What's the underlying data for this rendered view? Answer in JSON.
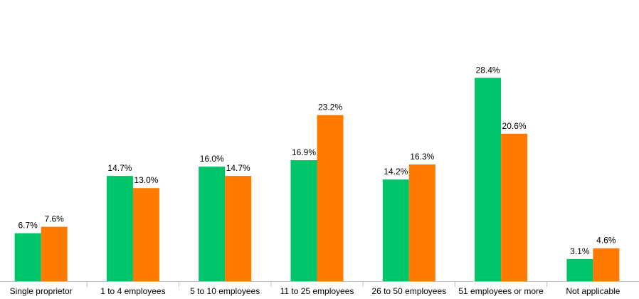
{
  "chart_data": {
    "type": "bar",
    "title": "",
    "xlabel": "",
    "ylabel": "",
    "ylim": [
      0,
      31
    ],
    "grid": false,
    "legend": "none",
    "categories": [
      "Single proprietor",
      "1 to 4 employees",
      "5 to 10 employees",
      "11 to 25 employees",
      "26 to 50 employees",
      "51 employees or more",
      "Not applicable"
    ],
    "series": [
      {
        "color": "#00c46a",
        "values": [
          6.7,
          14.7,
          16.0,
          16.9,
          14.2,
          28.4,
          3.1
        ],
        "labels": [
          "6.7%",
          "14.7%",
          "16.0%",
          "16.9%",
          "14.2%",
          "28.4%",
          "3.1%"
        ]
      },
      {
        "color": "#ff7a00",
        "values": [
          7.6,
          13.0,
          14.7,
          23.2,
          16.3,
          20.6,
          4.6
        ],
        "labels": [
          "7.6%",
          "13.0%",
          "14.7%",
          "23.2%",
          "16.3%",
          "20.6%",
          "4.6%"
        ]
      }
    ],
    "axis_color": "#bfbfbf"
  }
}
